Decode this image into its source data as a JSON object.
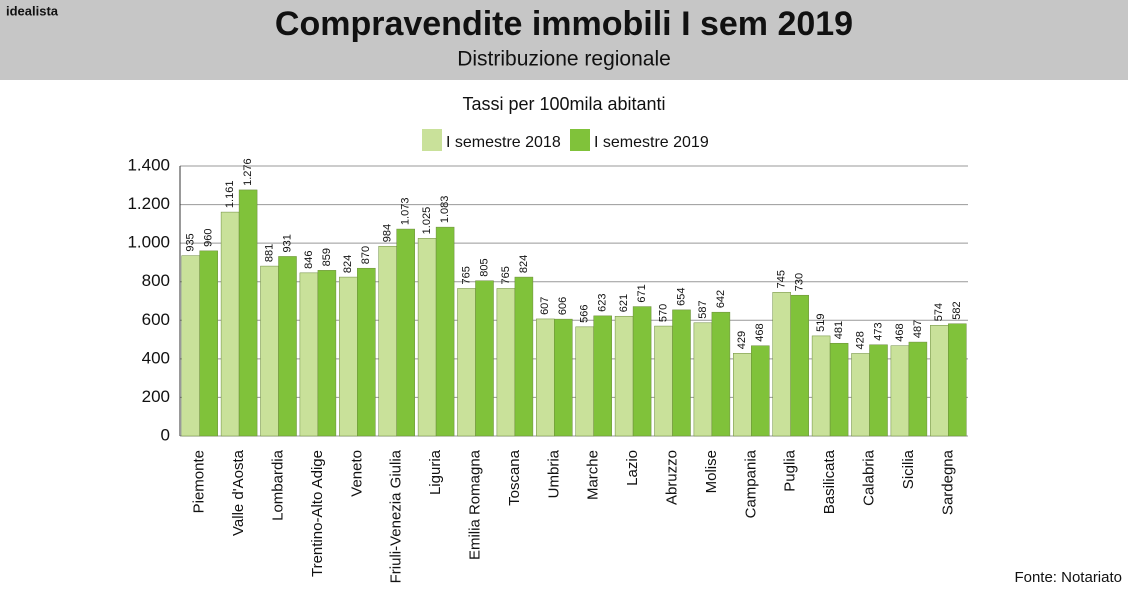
{
  "header": {
    "brand": "idealista"
  },
  "chart_data": {
    "type": "bar",
    "title": "Compravendite immobili I sem 2019",
    "subtitle": "Distribuzione regionale",
    "ylabel": "Tassi per 100mila abitanti",
    "source": "Fonte: Notariato",
    "categories": [
      "Piemonte",
      "Valle d'Aosta",
      "Lombardia",
      "Trentino-Alto Adige",
      "Veneto",
      "Friuli-Venezia Giulia",
      "Liguria",
      "Emilia Romagna",
      "Toscana",
      "Umbria",
      "Marche",
      "Lazio",
      "Abruzzo",
      "Molise",
      "Campania",
      "Puglia",
      "Basilicata",
      "Calabria",
      "Sicilia",
      "Sardegna"
    ],
    "series": [
      {
        "name": "I semestre 2018",
        "color": "#c9e19a",
        "values": [
          935,
          1161,
          881,
          846,
          824,
          984,
          1025,
          765,
          765,
          607,
          566,
          621,
          570,
          587,
          429,
          745,
          519,
          428,
          468,
          574
        ],
        "value_labels": [
          "935",
          "1.161",
          "881",
          "846",
          "824",
          "984",
          "1.025",
          "765",
          "765",
          "607",
          "566",
          "621",
          "570",
          "587",
          "429",
          "745",
          "519",
          "428",
          "468",
          "574"
        ]
      },
      {
        "name": "I semestre 2019",
        "color": "#80c23a",
        "values": [
          960,
          1276,
          931,
          859,
          870,
          1073,
          1083,
          805,
          824,
          606,
          623,
          671,
          654,
          642,
          468,
          730,
          481,
          473,
          487,
          582
        ],
        "value_labels": [
          "960",
          "1.276",
          "931",
          "859",
          "870",
          "1.073",
          "1.083",
          "805",
          "824",
          "606",
          "623",
          "671",
          "654",
          "642",
          "468",
          "730",
          "481",
          "473",
          "487",
          "582"
        ]
      }
    ],
    "ylim": [
      0,
      1400
    ],
    "yticks": [
      0,
      200,
      400,
      600,
      800,
      {
        "value": 1000,
        "label": "1.000"
      },
      {
        "value": 1200,
        "label": "1.200"
      },
      {
        "value": 1400,
        "label": "1.400"
      }
    ],
    "grid": true
  }
}
